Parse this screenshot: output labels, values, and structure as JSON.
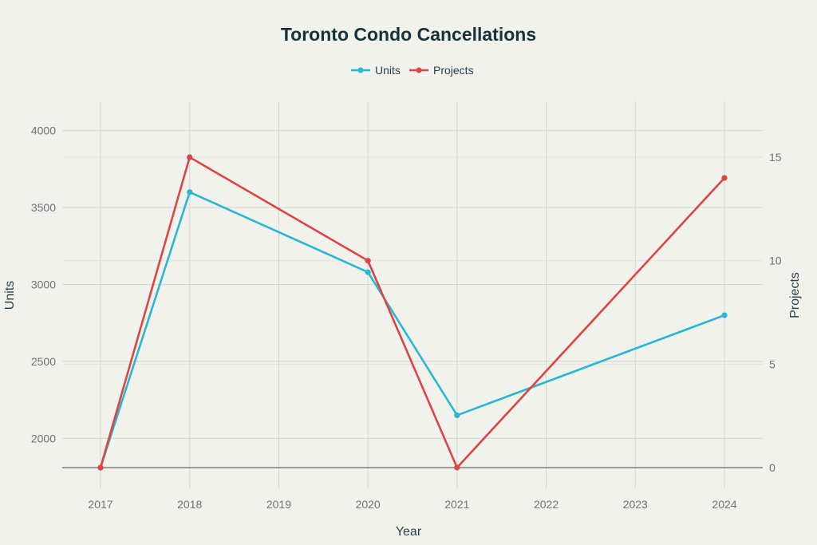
{
  "chart_data": {
    "type": "line",
    "title": "Toronto Condo Cancellations",
    "xlabel": "Year",
    "ylabel": "Units",
    "y2label": "Projects",
    "x": [
      "2017",
      "2018",
      "2019",
      "2020",
      "2021",
      "2022",
      "2023",
      "2024"
    ],
    "series": [
      {
        "name": "Units",
        "axis": "left",
        "color": "#2bb7d1",
        "points": [
          {
            "x": "2017",
            "y": 1810
          },
          {
            "x": "2018",
            "y": 3600
          },
          {
            "x": "2020",
            "y": 3080
          },
          {
            "x": "2021",
            "y": 2150
          },
          {
            "x": "2024",
            "y": 2800
          }
        ]
      },
      {
        "name": "Projects",
        "axis": "right",
        "color": "#dc4545",
        "points": [
          {
            "x": "2017",
            "y": 0
          },
          {
            "x": "2018",
            "y": 15
          },
          {
            "x": "2020",
            "y": 10
          },
          {
            "x": "2021",
            "y": 0
          },
          {
            "x": "2024",
            "y": 14
          }
        ]
      }
    ],
    "ylim": [
      1810,
      4190
    ],
    "y_ticks": [
      2000,
      2500,
      3000,
      3500,
      4000
    ],
    "y2lim": [
      0,
      17.7
    ],
    "y2_ticks": [
      0,
      5,
      10,
      15
    ],
    "grid": true,
    "legend_position": "top-center"
  }
}
